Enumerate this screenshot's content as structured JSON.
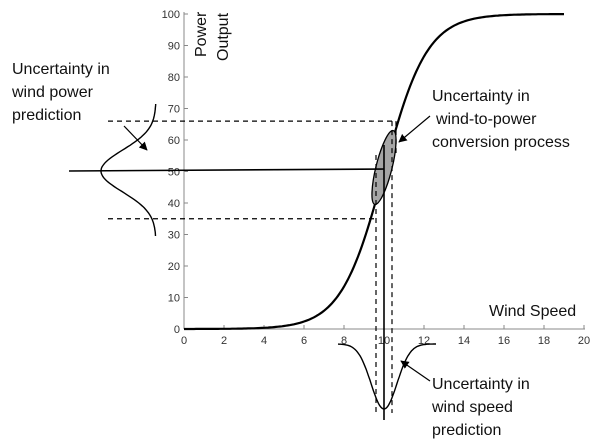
{
  "axes": {
    "x_title": "Wind Speed",
    "y_title_lines": [
      "Power",
      "Output"
    ],
    "x_ticks": [
      "0",
      "2",
      "4",
      "6",
      "8",
      "10",
      "12",
      "14",
      "16",
      "18",
      "20"
    ],
    "y_ticks": [
      "0",
      "10",
      "20",
      "30",
      "40",
      "50",
      "60",
      "70",
      "80",
      "90",
      "100"
    ],
    "xlim": [
      0,
      20
    ],
    "ylim": [
      0,
      100
    ]
  },
  "annotations": {
    "power_uncertainty": [
      "Uncertainty in",
      "wind power",
      "prediction"
    ],
    "conversion_uncertainty": [
      "Uncertainty in",
      "wind-to-power",
      "conversion process"
    ],
    "speed_uncertainty": [
      "Uncertainty in",
      "wind speed",
      "prediction"
    ]
  },
  "diagram_data": {
    "power_curve": {
      "type": "logistic",
      "x_start": 0,
      "x_end": 19,
      "midpoint": 10,
      "steepness": 0.93
    },
    "operating_point": {
      "x": 10,
      "y": 50
    },
    "speed_band": [
      9.6,
      10.4
    ],
    "power_band": [
      35,
      66
    ]
  },
  "colors": {
    "line": "#000000",
    "axis": "#888888",
    "tick_text": "#333333",
    "ellipse_fill": "#a6a6a6"
  }
}
